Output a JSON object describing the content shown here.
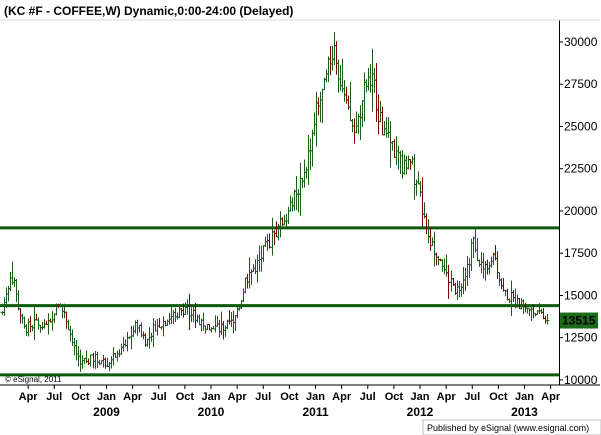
{
  "chart_data": {
    "type": "ohlc",
    "title": "(KC #F - COFFEE,W) Dynamic,0:00-24:00 (Delayed)",
    "ylim": [
      9700,
      31300
    ],
    "y_ticks": [
      "30000",
      "27500",
      "25000",
      "22500",
      "20000",
      "17500",
      "15000",
      "12500",
      "10000"
    ],
    "y_tick_values": [
      30000,
      27500,
      25000,
      22500,
      20000,
      17500,
      15000,
      12500,
      10000
    ],
    "x_month_labels": [
      "Apr",
      "Jul",
      "Oct",
      "Jan",
      "Apr",
      "Jul",
      "Oct",
      "Jan",
      "Apr",
      "Jul",
      "Oct",
      "Jan",
      "Apr",
      "Jul",
      "Oct",
      "Jan",
      "Apr",
      "Jul",
      "Oct",
      "Jan",
      "Apr"
    ],
    "x_month_positions": [
      3,
      6,
      9,
      12,
      15,
      18,
      21,
      24,
      27,
      30,
      33,
      36,
      39,
      42,
      45,
      48,
      51,
      54,
      57,
      60,
      63
    ],
    "x_year_labels": [
      "2009",
      "2010",
      "2011",
      "2012",
      "2013"
    ],
    "x_year_positions": [
      12,
      24,
      36,
      48,
      60
    ],
    "x_start_month": "2008-01",
    "x_end_month": "2013-04",
    "horizontal_lines": [
      19000,
      14400,
      10300
    ],
    "last_value": "13515",
    "last_value_num": 13515,
    "weekly_close_anchors": [
      [
        0,
        14000
      ],
      [
        1,
        16500
      ],
      [
        1.8,
        14500
      ],
      [
        2.5,
        13000
      ],
      [
        4,
        13400
      ],
      [
        5,
        13000
      ],
      [
        6.4,
        14600
      ],
      [
        7.5,
        13500
      ],
      [
        8.3,
        11800
      ],
      [
        9.2,
        11000
      ],
      [
        10.5,
        11300
      ],
      [
        12,
        11000
      ],
      [
        13.2,
        11500
      ],
      [
        14.6,
        12500
      ],
      [
        15.5,
        13400
      ],
      [
        16.5,
        12200
      ],
      [
        17.5,
        13200
      ],
      [
        19,
        13600
      ],
      [
        21,
        14300
      ],
      [
        22.5,
        13600
      ],
      [
        24,
        13000
      ],
      [
        26,
        13200
      ],
      [
        27,
        13800
      ],
      [
        28,
        16000
      ],
      [
        29.5,
        17000
      ],
      [
        31,
        18500
      ],
      [
        33,
        20000
      ],
      [
        35,
        23000
      ],
      [
        36,
        26000
      ],
      [
        37,
        27200
      ],
      [
        38,
        30000
      ],
      [
        39.5,
        26000
      ],
      [
        40.5,
        24500
      ],
      [
        41.5,
        27000
      ],
      [
        42.4,
        28300
      ],
      [
        43.5,
        25000
      ],
      [
        45,
        23500
      ],
      [
        46,
        22500
      ],
      [
        47,
        22800
      ],
      [
        48,
        20800
      ],
      [
        49,
        18000
      ],
      [
        50.2,
        17500
      ],
      [
        51,
        16200
      ],
      [
        52.2,
        15300
      ],
      [
        53.4,
        16800
      ],
      [
        54,
        18200
      ],
      [
        55.2,
        16500
      ],
      [
        56.5,
        17300
      ],
      [
        57.5,
        15200
      ],
      [
        58.5,
        14800
      ],
      [
        59.5,
        14400
      ],
      [
        60.5,
        14200
      ],
      [
        61.5,
        13800
      ],
      [
        62.6,
        13515
      ]
    ],
    "grid": false,
    "legend": "none"
  },
  "footer": {
    "copyright": "© eSignal, 2011",
    "published": "Published by eSignal (www.esignal.com)"
  },
  "colors": {
    "price_bars": "#1a5e1a",
    "down_bars": "#800000",
    "support_lines": "#0c5a0c",
    "last_value_box": "#1b6b1b",
    "frame": "#000000"
  }
}
